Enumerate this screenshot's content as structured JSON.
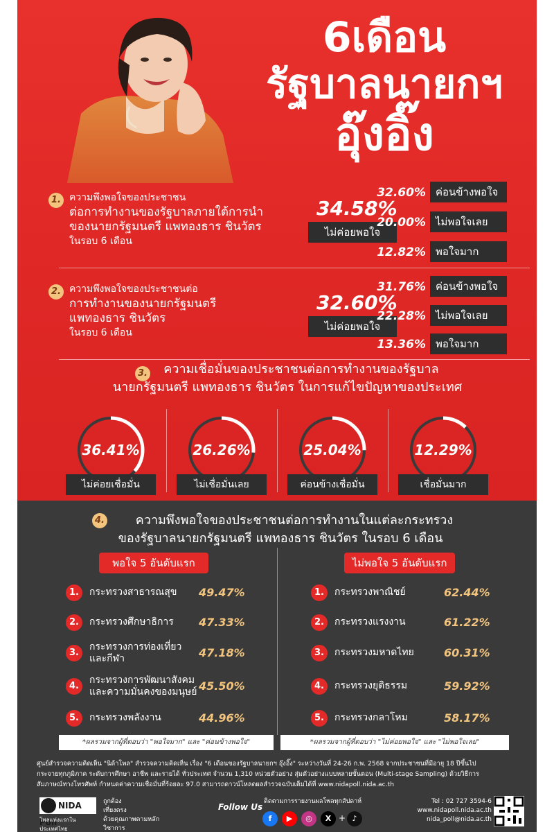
{
  "title": {
    "line1": "6เดือน",
    "line2": "รัฐบาลนายกฯ",
    "line3": "อุ๊งอิ๊ง"
  },
  "q1": {
    "num": "1.",
    "text_lines": [
      "ความพึงพอใจของประชาชน",
      "ต่อการทำงานของรัฐบาลภายใต้การนำ",
      "ของนายกรัฐมนตรี แพทองธาร ชินวัตร",
      "ในรอบ 6 เดือน"
    ],
    "main_pct": "34.58%",
    "main_label": "ไม่ค่อยพอใจ",
    "rows": [
      {
        "pct": "32.60%",
        "label": "ค่อนข้างพอใจ"
      },
      {
        "pct": "20.00%",
        "label": "ไม่พอใจเลย"
      },
      {
        "pct": "12.82%",
        "label": "พอใจมาก"
      }
    ]
  },
  "q2": {
    "num": "2.",
    "text_lines": [
      "ความพึงพอใจของประชาชนต่อ",
      "การทำงานของนายกรัฐมนตรี",
      "แพทองธาร ชินวัตร",
      "ในรอบ 6 เดือน"
    ],
    "main_pct": "32.60%",
    "main_label": "ไม่ค่อยพอใจ",
    "rows": [
      {
        "pct": "31.76%",
        "label": "ค่อนข้างพอใจ"
      },
      {
        "pct": "22.28%",
        "label": "ไม่พอใจเลย"
      },
      {
        "pct": "13.36%",
        "label": "พอใจมาก"
      }
    ]
  },
  "q3": {
    "num": "3.",
    "title_line1": "ความเชื่อมั่นของประชาชนต่อการทำงานของรัฐบาล",
    "title_line2": "นายกรัฐมนตรี แพทองธาร ชินวัตร ในการแก้ไขปัญหาของประเทศ",
    "items": [
      {
        "pct": "36.41%",
        "label": "ไม่ค่อยเชื่อมั่น",
        "value": 36.41
      },
      {
        "pct": "26.26%",
        "label": "ไม่เชื่อมั่นเลย",
        "value": 26.26
      },
      {
        "pct": "25.04%",
        "label": "ค่อนข้างเชื่อมั่น",
        "value": 25.04
      },
      {
        "pct": "12.29%",
        "label": "เชื่อมั่นมาก",
        "value": 12.29
      }
    ]
  },
  "q4": {
    "num": "4.",
    "title_line1": "ความพึงพอใจของประชาชนต่อการทำงานในแต่ละกระทรวง",
    "title_line2": "ของรัฐบาลนายกรัฐมนตรี แพทองธาร ชินวัตร ในรอบ 6 เดือน",
    "left_header": "พอใจ 5 อันดับแรก",
    "right_header": "ไม่พอใจ 5 อันดับแรก",
    "left": [
      {
        "num": "1.",
        "name": "กระทรวงสาธารณสุข",
        "pct": "49.47%"
      },
      {
        "num": "2.",
        "name": "กระทรวงศึกษาธิการ",
        "pct": "47.33%"
      },
      {
        "num": "3.",
        "name": "กระทรวงการท่องเที่ยว\nและกีฬา",
        "pct": "47.18%"
      },
      {
        "num": "4.",
        "name": "กระทรวงการพัฒนาสังคม\nและความมั่นคงของมนุษย์",
        "pct": "45.50%"
      },
      {
        "num": "5.",
        "name": "กระทรวงพลังงาน",
        "pct": "44.96%"
      }
    ],
    "right": [
      {
        "num": "1.",
        "name": "กระทรวงพาณิชย์",
        "pct": "62.44%"
      },
      {
        "num": "2.",
        "name": "กระทรวงแรงงาน",
        "pct": "61.22%"
      },
      {
        "num": "3.",
        "name": "กระทรวงมหาดไทย",
        "pct": "60.31%"
      },
      {
        "num": "4.",
        "name": "กระทรวงยุติธรรม",
        "pct": "59.92%"
      },
      {
        "num": "5.",
        "name": "กระทรวงกลาโหม",
        "pct": "58.17%"
      }
    ],
    "left_note": "*ผลรวมจากผู้ที่ตอบว่า \"พอใจมาก\" และ \"ค่อนข้างพอใจ\"",
    "right_note": "*ผลรวมจากผู้ที่ตอบว่า \"ไม่ค่อยพอใจ\" และ \"ไม่พอใจเลย\""
  },
  "footer": {
    "line1": "ศูนย์สำรวจความคิดเห็น \"นิด้าโพล\" สำรวจความคิดเห็น เรื่อง \"6 เดือนของรัฐบาลนายกฯ อุ๊งอิ๊ง\" ระหว่างวันที่ 24-26 ก.พ. 2568 จากประชาชนที่มีอายุ 18 ปีขึ้นไป",
    "line2": "กระจายทุกภูมิภาค ระดับการศึกษา อาชีพ และรายได้ ทั่วประเทศ จำนวน 1,310 หน่วยตัวอย่าง สุ่มตัวอย่างแบบหลายขั้นตอน (Multi-stage Sampling) ด้วยวิธีการ",
    "line3": "สัมภาษณ์ทางโทรศัพท์ กำหนดค่าความเชื่อมั่นที่ร้อยละ 97.0 สามารถดาวน์โหลดผลสำรวจฉบับเต็มได้ที่ www.nidapoll.nida.ac.th",
    "logo": "NIDA Poll",
    "logo_sub": "โพลแห่งแรกในประเทศไทย",
    "slogan": [
      "ถูกต้อง",
      "เที่ยงตรง",
      "ด้วยคุณภาพตามหลักวิชาการ"
    ],
    "follow": "Follow Us",
    "follow_caption": "ติดตามการรายงานผลโพลทุกสัปดาห์",
    "tel": "Tel : 02 727 3594-6",
    "web": "www.nidapoll.nida.ac.th",
    "email": "nida_poll@nida.ac.th"
  }
}
